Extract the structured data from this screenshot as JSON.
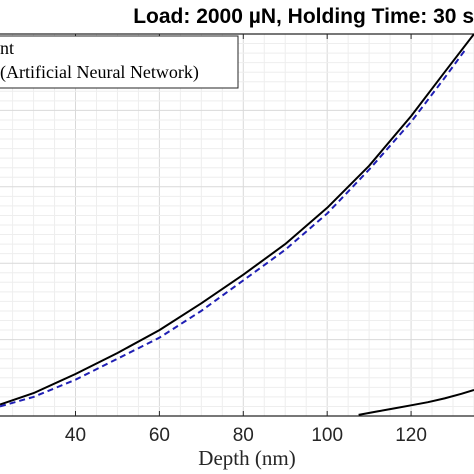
{
  "chart_data": {
    "type": "line",
    "title": "Load: 2000 µN, Holding Time: 30 s",
    "xlabel": "Depth (nm)",
    "ylabel": "",
    "xlim": [
      22,
      135
    ],
    "ylim": [
      0,
      1
    ],
    "xticks": [
      40,
      60,
      80,
      100,
      120
    ],
    "grid": true,
    "legend": {
      "placement": "top-left",
      "entries": [
        {
          "label": "nt",
          "color": "#000000",
          "style": "solid"
        },
        {
          "label": "(Artificial Neural Network)",
          "color": "#1f1fb4",
          "style": "dashed"
        }
      ]
    },
    "series": [
      {
        "name": "nt",
        "color": "#000000",
        "style": "solid",
        "x": [
          22,
          30,
          40,
          50,
          60,
          70,
          80,
          90,
          100,
          110,
          120,
          128,
          135
        ],
        "y": [
          0.03,
          0.06,
          0.11,
          0.165,
          0.225,
          0.295,
          0.37,
          0.45,
          0.545,
          0.655,
          0.785,
          0.9,
          1.0
        ]
      },
      {
        "name": "(Artificial Neural Network)",
        "color": "#1f1fb4",
        "style": "dashed",
        "x": [
          22,
          30,
          40,
          50,
          60,
          70,
          80,
          90,
          100,
          110,
          120,
          128,
          133
        ],
        "y": [
          0.025,
          0.05,
          0.095,
          0.15,
          0.205,
          0.275,
          0.355,
          0.435,
          0.53,
          0.645,
          0.77,
          0.885,
          0.96
        ]
      },
      {
        "name": "",
        "color": "#000000",
        "style": "solid",
        "x": [
          107.5,
          112,
          116,
          120,
          124,
          128,
          132,
          135
        ],
        "y": [
          0.003,
          0.012,
          0.02,
          0.028,
          0.036,
          0.046,
          0.058,
          0.068
        ]
      }
    ]
  }
}
